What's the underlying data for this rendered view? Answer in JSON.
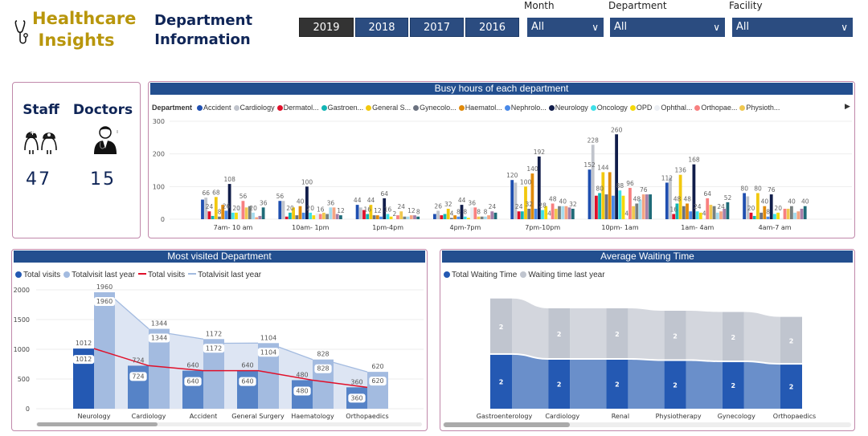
{
  "header": {
    "brand_line1": "Healthcare",
    "brand_line2": "Insights",
    "title_line1": "Department",
    "title_line2": "Information",
    "years": [
      {
        "label": "2019",
        "selected": true
      },
      {
        "label": "2018",
        "selected": false
      },
      {
        "label": "2017",
        "selected": false
      },
      {
        "label": "2016",
        "selected": false
      }
    ],
    "filters": [
      {
        "label": "Month",
        "value": "All"
      },
      {
        "label": "Department",
        "value": "All"
      },
      {
        "label": "Facility",
        "value": "All"
      }
    ],
    "brand_color": "#b8960c",
    "accent_color": "#2b4c80"
  },
  "kpis": {
    "staff_label": "Staff",
    "staff_value": "47",
    "staff_icon": "nurse-doctor-icon",
    "doctors_label": "Doctors",
    "doctors_value": "15",
    "doctors_icon": "doctor-icon"
  },
  "chart_data": [
    {
      "type": "bar",
      "title": "Busy hours of each department",
      "legend_title": "Department",
      "legend_placement": "top-left",
      "categories": [
        "7am- 10 am",
        "10am- 1pm",
        "1pm-4pm",
        "4pm-7pm",
        "7pm-10pm",
        "10pm- 1am",
        "1am- 4am",
        "4am-7 am"
      ],
      "ylim": [
        0,
        300
      ],
      "yticks": [
        0,
        100,
        200,
        300
      ],
      "grid": true,
      "series": [
        {
          "name": "Accident",
          "color": "#1f4fb0",
          "values": [
            60,
            56,
            44,
            16,
            120,
            152,
            112,
            80
          ]
        },
        {
          "name": "Cardiology",
          "color": "#c0c4cc",
          "values": [
            66,
            56,
            36,
            26,
            112,
            228,
            128,
            70
          ]
        },
        {
          "name": "Dermatol...",
          "color": "#e0102a",
          "values": [
            24,
            8,
            28,
            12,
            24,
            72,
            16,
            20
          ]
        },
        {
          "name": "Gastroen...",
          "color": "#12b5b5",
          "values": [
            10,
            20,
            16,
            16,
            24,
            80,
            48,
            10
          ]
        },
        {
          "name": "General S...",
          "color": "#f2c80f",
          "values": [
            68,
            36,
            44,
            32,
            100,
            144,
            136,
            80
          ]
        },
        {
          "name": "Gynecolo...",
          "color": "#6b7280",
          "values": [
            8,
            12,
            12,
            4,
            32,
            76,
            40,
            20
          ]
        },
        {
          "name": "Haematol...",
          "color": "#e08a0b",
          "values": [
            44,
            40,
            12,
            12,
            140,
            144,
            48,
            40
          ]
        },
        {
          "name": "Nephrolo...",
          "color": "#4a8ae8",
          "values": [
            26,
            20,
            8,
            8,
            32,
            72,
            24,
            8
          ]
        },
        {
          "name": "Neurology",
          "color": "#111d4a",
          "values": [
            108,
            100,
            64,
            44,
            192,
            260,
            168,
            76
          ]
        },
        {
          "name": "Oncology",
          "color": "#3fe0e8",
          "values": [
            20,
            20,
            16,
            8,
            28,
            88,
            24,
            16
          ]
        },
        {
          "name": "OPD",
          "color": "#f5d90a",
          "values": [
            20,
            12,
            8,
            4,
            40,
            72,
            20,
            20
          ]
        },
        {
          "name": "Ophthal...",
          "color": "#eceff4",
          "values": [
            40,
            18,
            2,
            36,
            4,
            4,
            4,
            4
          ]
        },
        {
          "name": "Orthopae...",
          "color": "#f88080",
          "values": [
            56,
            16,
            12,
            36,
            48,
            96,
            64,
            32
          ]
        },
        {
          "name": "Physioth...",
          "color": "#f0c850",
          "values": [
            36,
            20,
            24,
            8,
            32,
            40,
            44,
            32
          ]
        },
        {
          "color": "#777f7f",
          "values": [
            40,
            16,
            8,
            8,
            40,
            48,
            40,
            40
          ]
        },
        {
          "color": "#a6dcee",
          "values": [
            20,
            36,
            8,
            8,
            40,
            60,
            20,
            20
          ]
        },
        {
          "color": "#f5a582",
          "values": [
            6,
            36,
            12,
            12,
            40,
            76,
            24,
            24
          ]
        },
        {
          "color": "#a77fa8",
          "values": [
            10,
            16,
            12,
            24,
            36,
            76,
            32,
            32
          ]
        },
        {
          "color": "#1f6b78",
          "values": [
            36,
            12,
            8,
            20,
            32,
            76,
            52,
            40
          ]
        }
      ]
    },
    {
      "type": "bar",
      "title": "Most visited Department",
      "legend_placement": "top-left",
      "categories": [
        "Neurology",
        "Cardiology",
        "Accident",
        "General Surgery",
        "Haematology",
        "Orthopaedics"
      ],
      "ylim": [
        0,
        2000
      ],
      "yticks": [
        0,
        500,
        1000,
        1500,
        2000
      ],
      "grid": true,
      "legend": [
        {
          "name": "Total visits",
          "kind": "bar",
          "color": "#2459b3"
        },
        {
          "name": "Totalvisit last year",
          "kind": "bar",
          "color": "#a3bbe0"
        },
        {
          "name": "Total visits",
          "kind": "line",
          "color": "#e0102a"
        },
        {
          "name": "Totalvisit last year",
          "kind": "line",
          "color": "#a3bbe0"
        }
      ],
      "series": [
        {
          "name": "Total visits",
          "values": [
            1012,
            724,
            640,
            640,
            480,
            360
          ]
        },
        {
          "name": "Totalvisit last year",
          "values": [
            1960,
            1344,
            1172,
            1104,
            828,
            620
          ]
        }
      ]
    },
    {
      "type": "bar",
      "subtype": "ribbon",
      "title": "Average Waiting Time",
      "legend_placement": "top-left",
      "categories": [
        "Gastroenterology",
        "Cardiology",
        "Renal",
        "Physiotherapy",
        "Gynecology",
        "Orthopaedics"
      ],
      "series": [
        {
          "name": "Total Waiting Time",
          "color": "#2459b3",
          "values": [
            2.2,
            2.0,
            2.0,
            1.95,
            1.9,
            1.8
          ],
          "labels": [
            "2",
            "2",
            "2",
            "2",
            "2",
            "2"
          ]
        },
        {
          "name": "Waiting time last year",
          "color": "#c0c5cf",
          "values": [
            2.3,
            2.1,
            2.1,
            2.05,
            2.05,
            1.95
          ],
          "labels": [
            "2",
            "2",
            "2",
            "2",
            "2",
            "2"
          ]
        }
      ]
    }
  ]
}
